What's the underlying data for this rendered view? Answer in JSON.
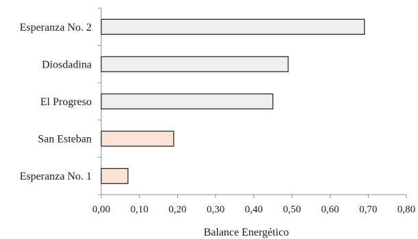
{
  "chart_data": {
    "type": "bar",
    "orientation": "horizontal",
    "categories": [
      "Esperanza No. 2",
      "Diosdadina",
      "El Progreso",
      "San Esteban",
      "Esperanza No. 1"
    ],
    "values": [
      0.69,
      0.49,
      0.45,
      0.19,
      0.07
    ],
    "bar_colors": [
      "#efefef",
      "#efefef",
      "#efefef",
      "#fbe3d6",
      "#fbe3d6"
    ],
    "xlabel": "Balance  Energético",
    "ylabel": "",
    "title": "",
    "xlim": [
      0,
      0.8
    ],
    "xticks": [
      0,
      0.1,
      0.2,
      0.3,
      0.4,
      0.5,
      0.6,
      0.7,
      0.8
    ],
    "xtick_labels": [
      "0,00",
      "0,10",
      "0,20",
      "0,30",
      "0,40",
      "0,50",
      "0,60",
      "0,70",
      "0,80"
    ],
    "grid": false,
    "legend": "none",
    "bar_edge_color": "#1a1a1a",
    "axis_color": "#8c8c8c"
  }
}
